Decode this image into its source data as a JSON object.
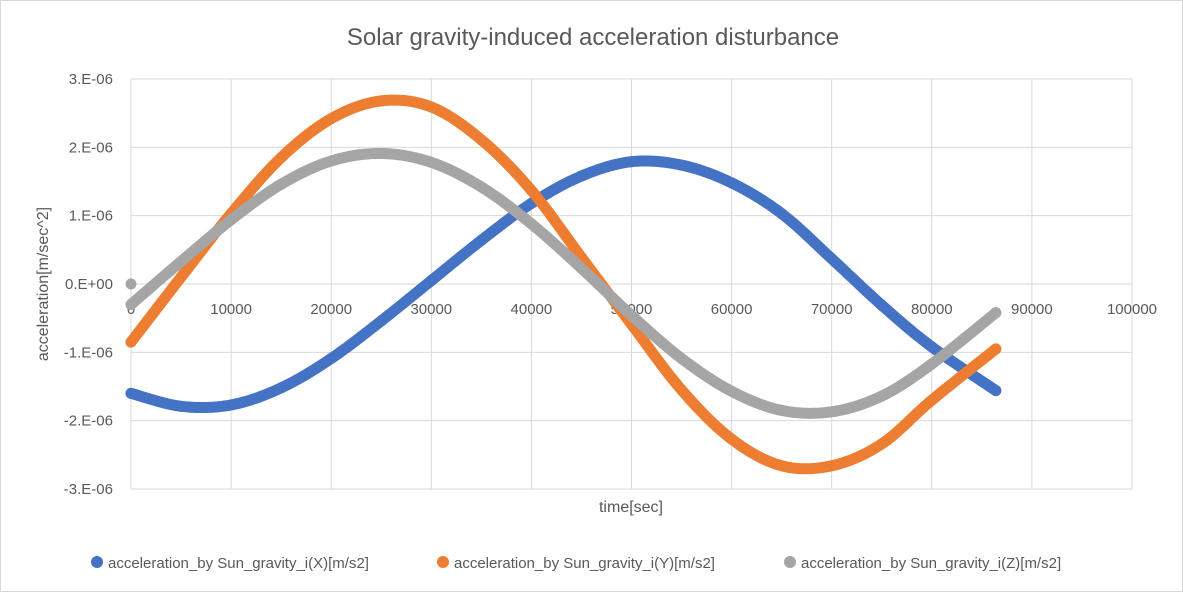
{
  "chart_data": {
    "type": "scatter",
    "title": "Solar gravity-induced acceleration disturbance",
    "xlabel": "time[sec]",
    "ylabel": "acceleration[m/sec^2]",
    "xlim": [
      0,
      100000
    ],
    "ylim": [
      -3e-06,
      3e-06
    ],
    "x_ticks": [
      {
        "value": 0,
        "label": "0"
      },
      {
        "value": 10000,
        "label": "10000"
      },
      {
        "value": 20000,
        "label": "20000"
      },
      {
        "value": 30000,
        "label": "30000"
      },
      {
        "value": 40000,
        "label": "40000"
      },
      {
        "value": 50000,
        "label": "50000"
      },
      {
        "value": 60000,
        "label": "60000"
      },
      {
        "value": 70000,
        "label": "70000"
      },
      {
        "value": 80000,
        "label": "80000"
      },
      {
        "value": 90000,
        "label": "90000"
      },
      {
        "value": 100000,
        "label": "100000"
      }
    ],
    "y_ticks": [
      {
        "value": 3e-06,
        "label": "3.E-06"
      },
      {
        "value": 2e-06,
        "label": "2.E-06"
      },
      {
        "value": 1e-06,
        "label": "1.E-06"
      },
      {
        "value": 0,
        "label": "0.E+00"
      },
      {
        "value": -1e-06,
        "label": "-1.E-06"
      },
      {
        "value": -2e-06,
        "label": "-2.E-06"
      },
      {
        "value": -3e-06,
        "label": "-3.E-06"
      }
    ],
    "grid": true,
    "legend_position": "bottom",
    "series": [
      {
        "name": "acceleration_by Sun_gravity_i(X)[m/s2]",
        "color": "#4472c4",
        "x": [
          0,
          5000,
          10000,
          15000,
          20000,
          25000,
          30000,
          35000,
          40000,
          45000,
          50000,
          55000,
          60000,
          65000,
          70000,
          75000,
          80000,
          86400
        ],
        "y": [
          -1.6e-06,
          -1.79e-06,
          -1.77e-06,
          -1.52e-06,
          -1.09e-06,
          -5.4e-07,
          5e-08,
          6.4e-07,
          1.18e-06,
          1.58e-06,
          1.79e-06,
          1.74e-06,
          1.48e-06,
          1.03e-06,
          3.7e-07,
          -3.1e-07,
          -9.2e-07,
          -1.56e-06
        ]
      },
      {
        "name": "acceleration_by Sun_gravity_i(Y)[m/s2]",
        "color": "#ed7d31",
        "x": [
          0,
          5000,
          10000,
          15000,
          20000,
          25000,
          30000,
          35000,
          40000,
          45000,
          50000,
          55000,
          60000,
          65000,
          70000,
          75000,
          80000,
          86400
        ],
        "y": [
          -8.5e-07,
          1e-07,
          1.03e-06,
          1.85e-06,
          2.42e-06,
          2.68e-06,
          2.59e-06,
          2.11e-06,
          1.37e-06,
          3.9e-07,
          -5.9e-07,
          -1.55e-06,
          -2.27e-06,
          -2.66e-06,
          -2.66e-06,
          -2.34e-06,
          -1.7e-06,
          -9.5e-07
        ]
      },
      {
        "name": "acceleration_by Sun_gravity_i(Z)[m/s2]",
        "color": "#a5a5a5",
        "x": [
          0,
          5000,
          10000,
          15000,
          20000,
          25000,
          30000,
          35000,
          40000,
          45000,
          50000,
          55000,
          60000,
          65000,
          70000,
          75000,
          80000,
          86400
        ],
        "y": [
          -3e-07,
          3.3e-07,
          9.4e-07,
          1.46e-06,
          1.8e-06,
          1.91e-06,
          1.78e-06,
          1.42e-06,
          8.8e-07,
          2.3e-07,
          -4.6e-07,
          -1.09e-06,
          -1.57e-06,
          -1.85e-06,
          -1.87e-06,
          -1.64e-06,
          -1.17e-06,
          -4.2e-07
        ]
      }
    ],
    "annotations": [
      {
        "series_color": "#a5a5a5",
        "x": 0,
        "y": 0
      }
    ]
  }
}
